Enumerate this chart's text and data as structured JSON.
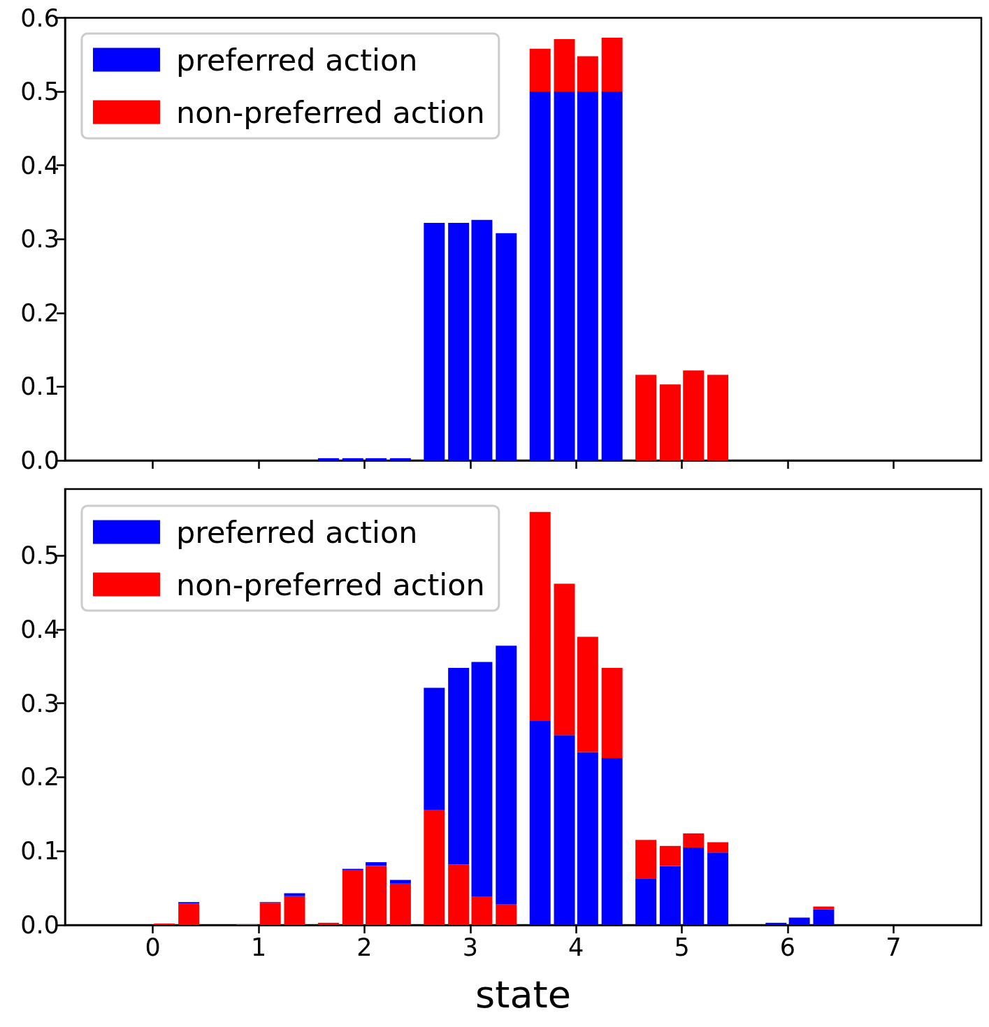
{
  "chart_data": [
    {
      "type": "bar",
      "stacked": true,
      "legend": "top left",
      "tick_labels": "y",
      "xlim": [
        -0.83,
        7.83
      ],
      "xticks": [
        0,
        1,
        2,
        3,
        4,
        5,
        6,
        7
      ],
      "ylim": [
        0,
        0.6
      ],
      "yticks": [
        {
          "value": 0,
          "label": "0.0"
        },
        0.1,
        0.2,
        0.3,
        0.4,
        0.5,
        0.6
      ],
      "x": [
        1.66,
        1.89,
        2.11,
        2.34,
        2.66,
        2.89,
        3.11,
        3.34,
        3.66,
        3.89,
        4.11,
        4.34,
        4.66,
        4.89,
        5.11,
        5.34
      ],
      "series": [
        {
          "name": "preferred action",
          "color": "#0000ff",
          "values": [
            0.003,
            0.003,
            0.003,
            0.003,
            0.322,
            0.322,
            0.326,
            0.308,
            0.5,
            0.5,
            0.5,
            0.5,
            null,
            null,
            null,
            null
          ]
        },
        {
          "name": "non-preferred action",
          "color": "#ff0000",
          "values": [
            null,
            null,
            null,
            null,
            null,
            null,
            null,
            null,
            0.058,
            0.071,
            0.048,
            0.073,
            0.116,
            0.103,
            0.122,
            0.116
          ]
        }
      ]
    },
    {
      "type": "bar",
      "stacked": true,
      "legend": "top left",
      "xlabel": "state",
      "xlim": [
        -0.83,
        7.83
      ],
      "xticks": [
        0,
        1,
        2,
        3,
        4,
        5,
        6,
        7
      ],
      "ylim": [
        0,
        0.59
      ],
      "yticks": [
        {
          "value": 0,
          "label": "0.0"
        },
        0.1,
        0.2,
        0.3,
        0.4,
        0.5
      ],
      "x": [
        0.11,
        0.34,
        0.89,
        1.11,
        1.34,
        1.66,
        1.89,
        2.11,
        2.34,
        2.66,
        2.89,
        3.11,
        3.34,
        3.66,
        3.89,
        4.11,
        4.34,
        4.66,
        4.89,
        5.11,
        5.34,
        5.89,
        6.11,
        6.34
      ],
      "series": [
        {
          "color": "#ff0000",
          "values": [
            0.002,
            0.029,
            0.001,
            0.03,
            0.039,
            0.003,
            0.074,
            0.08,
            0.056,
            0.156,
            0.082,
            0.038,
            0.028,
            null,
            null,
            null,
            null,
            null,
            null,
            null,
            null,
            null,
            null,
            null
          ]
        },
        {
          "name": "preferred action",
          "color": "#0000ff",
          "values": [
            null,
            0.002,
            null,
            0.001,
            0.004,
            null,
            0.002,
            0.005,
            0.005,
            0.165,
            0.266,
            0.318,
            0.35,
            0.276,
            0.257,
            0.234,
            0.226,
            0.063,
            0.08,
            0.105,
            0.098,
            0.003,
            0.01,
            0.021
          ]
        },
        {
          "name": "non-preferred action",
          "color": "#ff0000",
          "values": [
            null,
            null,
            null,
            null,
            null,
            null,
            null,
            null,
            null,
            null,
            null,
            null,
            null,
            0.283,
            0.205,
            0.156,
            0.122,
            0.052,
            0.027,
            0.019,
            0.014,
            null,
            null,
            0.004
          ]
        }
      ]
    }
  ]
}
